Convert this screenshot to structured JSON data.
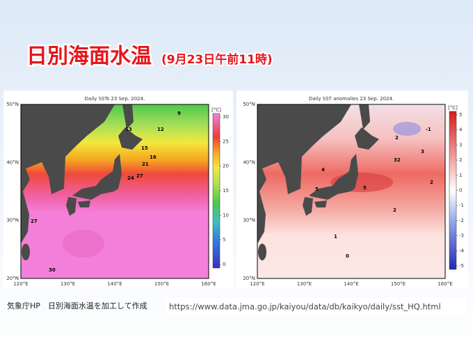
{
  "header": {
    "title": "日別海面水温",
    "subtitle": "(9月23日午前11時)"
  },
  "maps": [
    {
      "title": "Daily SSTs 23 Sep. 2024.",
      "unit": "[°C]",
      "lat_labels": [
        "50°N",
        "40°N",
        "30°N",
        "20°N"
      ],
      "lon_labels": [
        "120°E",
        "130°E",
        "140°E",
        "150°E",
        "160°E"
      ],
      "colorbar_ticks": [
        0,
        5,
        10,
        15,
        20,
        25,
        30
      ],
      "contour_labels": [
        "9",
        "12",
        "13",
        "15",
        "16",
        "21",
        "24",
        "27",
        "27",
        "30"
      ]
    },
    {
      "title": "Daily SST anomalies 23 Sep. 2024.",
      "unit": "[°C]",
      "lat_labels": [
        "50°N",
        "40°N",
        "30°N",
        "20°N"
      ],
      "lon_labels": [
        "120°E",
        "130°E",
        "140°E",
        "150°E",
        "160°E"
      ],
      "colorbar_ticks": [
        -5,
        -4,
        -3,
        -2,
        -1,
        0,
        1,
        2,
        3,
        4,
        5
      ],
      "contour_labels": [
        "-1",
        "2",
        "3",
        "4",
        "5",
        "5",
        "32",
        "2",
        "2",
        "1",
        "0"
      ]
    }
  ],
  "footer": {
    "source": "気象庁HP　日別海面水温を加工して作成",
    "url": "https://www.data.jma.go.jp/kaiyou/data/db/kaikyo/daily/sst_HQ.html"
  }
}
